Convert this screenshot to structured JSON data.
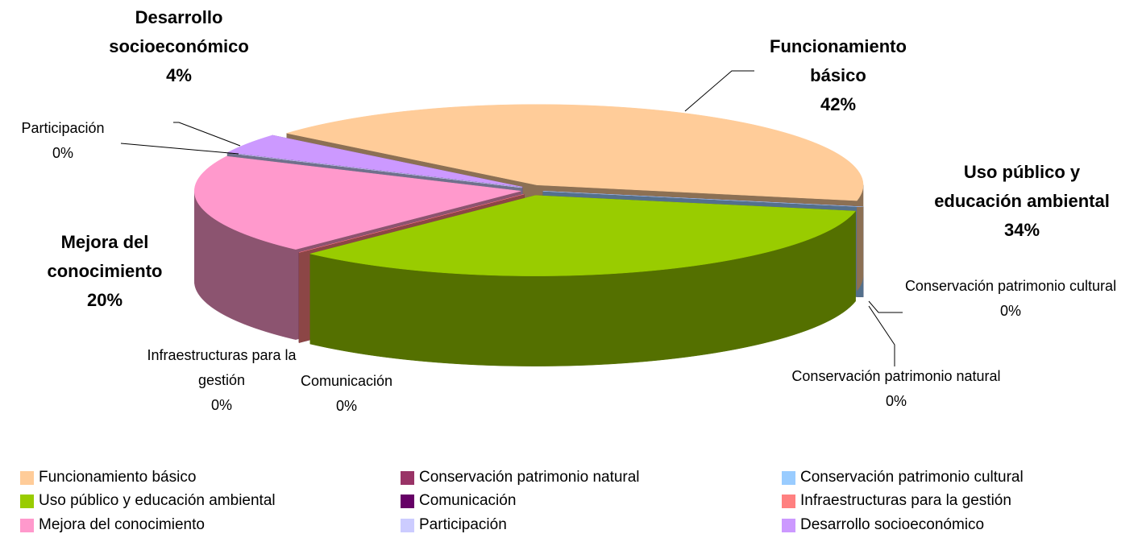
{
  "chart_data": {
    "type": "pie",
    "pie_3d": true,
    "categories": [
      "Funcionamiento básico",
      "Conservación patrimonio natural",
      "Conservación patrimonio cultural",
      "Uso público y educación ambiental",
      "Comunicación",
      "Infraestructuras para la gestión",
      "Mejora del conocimiento",
      "Participación",
      "Desarrollo socioeconómico"
    ],
    "values": [
      42,
      0,
      0,
      34,
      0,
      0,
      20,
      0,
      4
    ],
    "value_labels": [
      "42%",
      "0%",
      "0%",
      "34%",
      "0%",
      "0%",
      "20%",
      "0%",
      "4%"
    ],
    "colors": [
      "#FFCC99",
      "#993366",
      "#99CCFF",
      "#99CC00",
      "#660066",
      "#FF8080",
      "#FF99CC",
      "#CCCCFF",
      "#CC99FF"
    ],
    "legend": "bottom"
  }
}
